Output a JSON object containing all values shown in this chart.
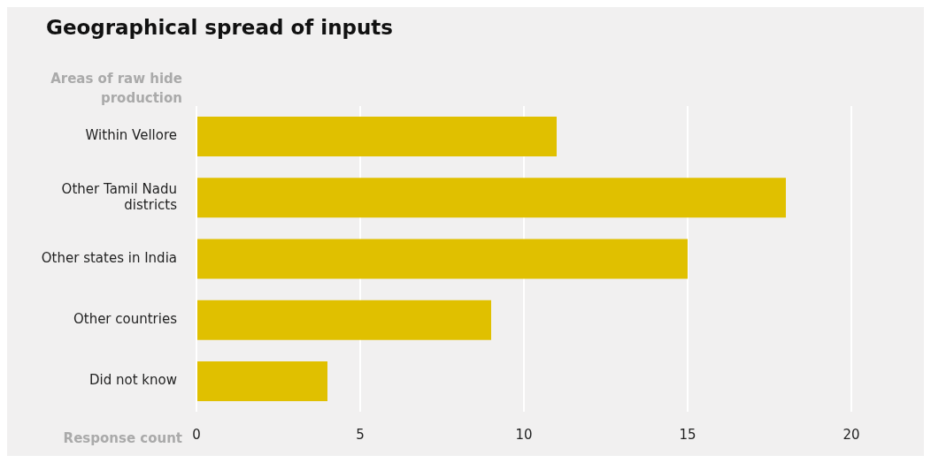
{
  "chart_data": {
    "type": "bar",
    "orientation": "horizontal",
    "title": "Geographical spread of inputs",
    "ylabel": "Areas of raw hide production",
    "xlabel": "Response count",
    "categories": [
      "Within Vellore",
      "Other Tamil Nadu districts",
      "Other states in India",
      "Other countries",
      "Did not know"
    ],
    "values": [
      11,
      18,
      15,
      9,
      4
    ],
    "color": "#e0c000",
    "xlim": [
      0,
      20
    ],
    "xticks": [
      0,
      5,
      10,
      15,
      20
    ],
    "grid": "x"
  }
}
